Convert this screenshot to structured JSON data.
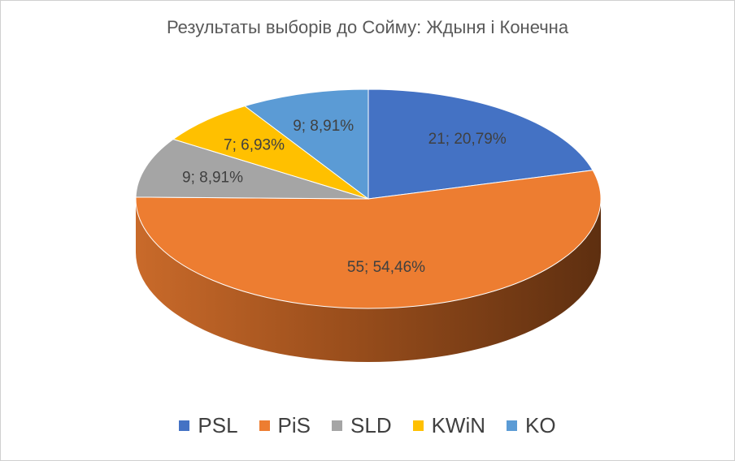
{
  "chart_data": {
    "type": "pie",
    "title": "Результаты выборів до Сойму: Ждыня і Конечна",
    "legend_position": "bottom",
    "slices": [
      {
        "name": "PSL",
        "value": 21,
        "label": "21; 20,79%",
        "color": "#4472C4"
      },
      {
        "name": "PiS",
        "value": 55,
        "label": "55; 54,46%",
        "color": "#ED7D31"
      },
      {
        "name": "SLD",
        "value": 9,
        "label": "9; 8,91%",
        "color": "#A5A5A5"
      },
      {
        "name": "KWiN",
        "value": 7,
        "label": "7; 6,93%",
        "color": "#FFC000"
      },
      {
        "name": "KO",
        "value": 9,
        "label": "9; 8,91%",
        "color": "#5B9BD5"
      }
    ]
  }
}
